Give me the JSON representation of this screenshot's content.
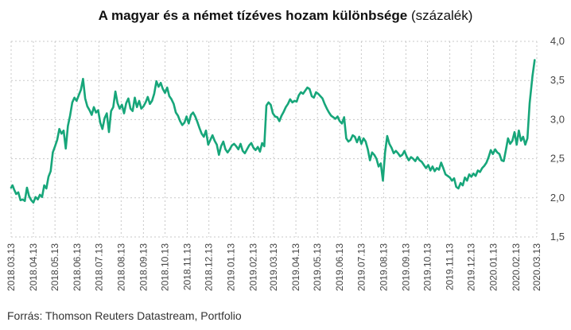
{
  "title_bold": "A magyar és a német tízéves hozam különbsége",
  "title_unit": "(százalék)",
  "source": "Forrás: Thomson Reuters Datastream, Portfolio",
  "chart_data": {
    "type": "line",
    "title": "A magyar és a német tízéves hozam különbsége (százalék)",
    "ylim": [
      1.5,
      4.0
    ],
    "yticks": [
      "4,0",
      "3,5",
      "3,0",
      "2,5",
      "2,0",
      "1,5"
    ],
    "ytick_values": [
      4.0,
      3.5,
      3.0,
      2.5,
      2.0,
      1.5
    ],
    "xlim": [
      "2018-03-13",
      "2020-03-13"
    ],
    "grid": true,
    "color": "#17a67a",
    "xticks": [
      {
        "label": "2018.03.13",
        "date": "2018-03-13"
      },
      {
        "label": "2018.04.13",
        "date": "2018-04-13"
      },
      {
        "label": "2018.05.13",
        "date": "2018-05-13"
      },
      {
        "label": "2018.06.13",
        "date": "2018-06-13"
      },
      {
        "label": "2018.07.13",
        "date": "2018-07-13"
      },
      {
        "label": "2018.08.13",
        "date": "2018-08-13"
      },
      {
        "label": "2018.09.13",
        "date": "2018-09-13"
      },
      {
        "label": "2018.10.13",
        "date": "2018-10-13"
      },
      {
        "label": "2018.11.13",
        "date": "2018-11-13"
      },
      {
        "label": "2018.12.13",
        "date": "2018-12-13"
      },
      {
        "label": "2019.01.13",
        "date": "2019-01-13"
      },
      {
        "label": "2019.02.13",
        "date": "2019-02-13"
      },
      {
        "label": "2019.03.13",
        "date": "2019-03-13"
      },
      {
        "label": "2019.04.13",
        "date": "2019-04-13"
      },
      {
        "label": "2019.05.13",
        "date": "2019-05-13"
      },
      {
        "label": "2019.06.13",
        "date": "2019-06-13"
      },
      {
        "label": "2019.07.13",
        "date": "2019-07-13"
      },
      {
        "label": "2019.08.13",
        "date": "2019-08-13"
      },
      {
        "label": "2019.09.13",
        "date": "2019-09-13"
      },
      {
        "label": "2019.10.13",
        "date": "2019-10-13"
      },
      {
        "label": "2019.11.13",
        "date": "2019-11-13"
      },
      {
        "label": "2019.12.13",
        "date": "2019-12-13"
      },
      {
        "label": "2020.01.13",
        "date": "2020-01-13"
      },
      {
        "label": "2020.02.13",
        "date": "2020-02-13"
      },
      {
        "label": "2020.03.13",
        "date": "2020-03-13"
      }
    ],
    "series": [
      {
        "points": [
          [
            "2018-03-13",
            2.13
          ],
          [
            "2018-03-15",
            2.16
          ],
          [
            "2018-03-17",
            2.11
          ],
          [
            "2018-03-20",
            2.05
          ],
          [
            "2018-03-23",
            2.07
          ],
          [
            "2018-03-26",
            1.97
          ],
          [
            "2018-03-29",
            1.98
          ],
          [
            "2018-04-01",
            1.96
          ],
          [
            "2018-04-04",
            2.13
          ],
          [
            "2018-04-07",
            2.02
          ],
          [
            "2018-04-10",
            1.97
          ],
          [
            "2018-04-13",
            1.94
          ],
          [
            "2018-04-16",
            2.01
          ],
          [
            "2018-04-19",
            1.98
          ],
          [
            "2018-04-22",
            2.04
          ],
          [
            "2018-04-25",
            2.01
          ],
          [
            "2018-04-28",
            2.16
          ],
          [
            "2018-05-01",
            2.12
          ],
          [
            "2018-05-04",
            2.27
          ],
          [
            "2018-05-07",
            2.34
          ],
          [
            "2018-05-10",
            2.58
          ],
          [
            "2018-05-13",
            2.66
          ],
          [
            "2018-05-16",
            2.74
          ],
          [
            "2018-05-19",
            2.88
          ],
          [
            "2018-05-22",
            2.82
          ],
          [
            "2018-05-25",
            2.86
          ],
          [
            "2018-05-28",
            2.63
          ],
          [
            "2018-05-31",
            2.92
          ],
          [
            "2018-06-03",
            3.05
          ],
          [
            "2018-06-06",
            3.22
          ],
          [
            "2018-06-09",
            3.28
          ],
          [
            "2018-06-12",
            3.24
          ],
          [
            "2018-06-15",
            3.31
          ],
          [
            "2018-06-18",
            3.38
          ],
          [
            "2018-06-21",
            3.52
          ],
          [
            "2018-06-24",
            3.27
          ],
          [
            "2018-06-27",
            3.17
          ],
          [
            "2018-06-30",
            3.12
          ],
          [
            "2018-07-03",
            3.06
          ],
          [
            "2018-07-06",
            3.16
          ],
          [
            "2018-07-09",
            3.09
          ],
          [
            "2018-07-12",
            3.12
          ],
          [
            "2018-07-15",
            2.96
          ],
          [
            "2018-07-18",
            2.88
          ],
          [
            "2018-07-21",
            3.02
          ],
          [
            "2018-07-24",
            3.08
          ],
          [
            "2018-07-27",
            2.84
          ],
          [
            "2018-07-30",
            3.11
          ],
          [
            "2018-08-02",
            3.16
          ],
          [
            "2018-08-05",
            3.36
          ],
          [
            "2018-08-08",
            3.21
          ],
          [
            "2018-08-11",
            3.14
          ],
          [
            "2018-08-14",
            3.19
          ],
          [
            "2018-08-17",
            3.08
          ],
          [
            "2018-08-20",
            3.21
          ],
          [
            "2018-08-23",
            3.27
          ],
          [
            "2018-08-26",
            3.14
          ],
          [
            "2018-08-29",
            3.11
          ],
          [
            "2018-09-01",
            3.28
          ],
          [
            "2018-09-04",
            3.16
          ],
          [
            "2018-09-07",
            3.24
          ],
          [
            "2018-09-10",
            3.14
          ],
          [
            "2018-09-13",
            3.17
          ],
          [
            "2018-09-16",
            3.22
          ],
          [
            "2018-09-19",
            3.29
          ],
          [
            "2018-09-22",
            3.2
          ],
          [
            "2018-09-25",
            3.24
          ],
          [
            "2018-09-28",
            3.33
          ],
          [
            "2018-10-01",
            3.49
          ],
          [
            "2018-10-04",
            3.42
          ],
          [
            "2018-10-07",
            3.47
          ],
          [
            "2018-10-10",
            3.39
          ],
          [
            "2018-10-13",
            3.34
          ],
          [
            "2018-10-16",
            3.41
          ],
          [
            "2018-10-19",
            3.3
          ],
          [
            "2018-10-22",
            3.26
          ],
          [
            "2018-10-25",
            3.2
          ],
          [
            "2018-10-28",
            3.09
          ],
          [
            "2018-10-31",
            3.05
          ],
          [
            "2018-11-03",
            2.98
          ],
          [
            "2018-11-06",
            2.93
          ],
          [
            "2018-11-09",
            2.96
          ],
          [
            "2018-11-12",
            3.04
          ],
          [
            "2018-11-15",
            2.95
          ],
          [
            "2018-11-18",
            3.06
          ],
          [
            "2018-11-21",
            3.09
          ],
          [
            "2018-11-24",
            3.04
          ],
          [
            "2018-11-27",
            2.97
          ],
          [
            "2018-11-30",
            2.89
          ],
          [
            "2018-12-03",
            2.82
          ],
          [
            "2018-12-06",
            2.78
          ],
          [
            "2018-12-09",
            2.86
          ],
          [
            "2018-12-12",
            2.68
          ],
          [
            "2018-12-15",
            2.74
          ],
          [
            "2018-12-18",
            2.8
          ],
          [
            "2018-12-21",
            2.73
          ],
          [
            "2018-12-24",
            2.68
          ],
          [
            "2018-12-27",
            2.55
          ],
          [
            "2018-12-30",
            2.66
          ],
          [
            "2019-01-02",
            2.72
          ],
          [
            "2019-01-05",
            2.62
          ],
          [
            "2019-01-08",
            2.58
          ],
          [
            "2019-01-11",
            2.62
          ],
          [
            "2019-01-14",
            2.67
          ],
          [
            "2019-01-17",
            2.69
          ],
          [
            "2019-01-20",
            2.66
          ],
          [
            "2019-01-23",
            2.62
          ],
          [
            "2019-01-26",
            2.69
          ],
          [
            "2019-01-29",
            2.6
          ],
          [
            "2019-02-01",
            2.57
          ],
          [
            "2019-02-04",
            2.62
          ],
          [
            "2019-02-07",
            2.67
          ],
          [
            "2019-02-10",
            2.7
          ],
          [
            "2019-02-13",
            2.64
          ],
          [
            "2019-02-16",
            2.61
          ],
          [
            "2019-02-19",
            2.65
          ],
          [
            "2019-02-22",
            2.59
          ],
          [
            "2019-02-25",
            2.7
          ],
          [
            "2019-02-28",
            2.66
          ],
          [
            "2019-03-03",
            3.18
          ],
          [
            "2019-03-06",
            3.22
          ],
          [
            "2019-03-09",
            3.19
          ],
          [
            "2019-03-12",
            3.08
          ],
          [
            "2019-03-15",
            3.04
          ],
          [
            "2019-03-18",
            3.03
          ],
          [
            "2019-03-21",
            2.98
          ],
          [
            "2019-03-24",
            3.05
          ],
          [
            "2019-03-27",
            3.1
          ],
          [
            "2019-03-30",
            3.16
          ],
          [
            "2019-04-02",
            3.2
          ],
          [
            "2019-04-05",
            3.26
          ],
          [
            "2019-04-08",
            3.22
          ],
          [
            "2019-04-11",
            3.24
          ],
          [
            "2019-04-14",
            3.23
          ],
          [
            "2019-04-17",
            3.31
          ],
          [
            "2019-04-20",
            3.35
          ],
          [
            "2019-04-23",
            3.33
          ],
          [
            "2019-04-26",
            3.37
          ],
          [
            "2019-04-29",
            3.41
          ],
          [
            "2019-05-02",
            3.39
          ],
          [
            "2019-05-05",
            3.3
          ],
          [
            "2019-05-08",
            3.28
          ],
          [
            "2019-05-11",
            3.35
          ],
          [
            "2019-05-14",
            3.33
          ],
          [
            "2019-05-17",
            3.3
          ],
          [
            "2019-05-20",
            3.27
          ],
          [
            "2019-05-23",
            3.2
          ],
          [
            "2019-05-26",
            3.14
          ],
          [
            "2019-05-29",
            3.09
          ],
          [
            "2019-06-01",
            3.05
          ],
          [
            "2019-06-04",
            3.03
          ],
          [
            "2019-06-07",
            3.01
          ],
          [
            "2019-06-10",
            3.04
          ],
          [
            "2019-06-13",
            2.98
          ],
          [
            "2019-06-16",
            2.95
          ],
          [
            "2019-06-19",
            3.03
          ],
          [
            "2019-06-22",
            2.76
          ],
          [
            "2019-06-25",
            2.72
          ],
          [
            "2019-06-28",
            2.74
          ],
          [
            "2019-07-01",
            2.8
          ],
          [
            "2019-07-04",
            2.78
          ],
          [
            "2019-07-07",
            2.71
          ],
          [
            "2019-07-10",
            2.78
          ],
          [
            "2019-07-13",
            2.69
          ],
          [
            "2019-07-16",
            2.76
          ],
          [
            "2019-07-19",
            2.72
          ],
          [
            "2019-07-22",
            2.62
          ],
          [
            "2019-07-25",
            2.48
          ],
          [
            "2019-07-28",
            2.58
          ],
          [
            "2019-07-31",
            2.55
          ],
          [
            "2019-08-03",
            2.5
          ],
          [
            "2019-08-06",
            2.4
          ],
          [
            "2019-08-09",
            2.44
          ],
          [
            "2019-08-12",
            2.22
          ],
          [
            "2019-08-15",
            2.58
          ],
          [
            "2019-08-18",
            2.79
          ],
          [
            "2019-08-21",
            2.69
          ],
          [
            "2019-08-24",
            2.64
          ],
          [
            "2019-08-27",
            2.57
          ],
          [
            "2019-08-30",
            2.6
          ],
          [
            "2019-09-02",
            2.57
          ],
          [
            "2019-09-05",
            2.53
          ],
          [
            "2019-09-08",
            2.55
          ],
          [
            "2019-09-11",
            2.6
          ],
          [
            "2019-09-14",
            2.53
          ],
          [
            "2019-09-17",
            2.48
          ],
          [
            "2019-09-20",
            2.52
          ],
          [
            "2019-09-23",
            2.5
          ],
          [
            "2019-09-26",
            2.47
          ],
          [
            "2019-09-29",
            2.52
          ],
          [
            "2019-10-02",
            2.48
          ],
          [
            "2019-10-05",
            2.46
          ],
          [
            "2019-10-08",
            2.42
          ],
          [
            "2019-10-11",
            2.38
          ],
          [
            "2019-10-14",
            2.42
          ],
          [
            "2019-10-17",
            2.35
          ],
          [
            "2019-10-20",
            2.4
          ],
          [
            "2019-10-23",
            2.34
          ],
          [
            "2019-10-26",
            2.38
          ],
          [
            "2019-10-29",
            2.36
          ],
          [
            "2019-11-01",
            2.45
          ],
          [
            "2019-11-04",
            2.38
          ],
          [
            "2019-11-07",
            2.3
          ],
          [
            "2019-11-10",
            2.28
          ],
          [
            "2019-11-13",
            2.26
          ],
          [
            "2019-11-16",
            2.22
          ],
          [
            "2019-11-19",
            2.25
          ],
          [
            "2019-11-22",
            2.14
          ],
          [
            "2019-11-25",
            2.12
          ],
          [
            "2019-11-28",
            2.19
          ],
          [
            "2019-12-01",
            2.16
          ],
          [
            "2019-12-04",
            2.26
          ],
          [
            "2019-12-07",
            2.22
          ],
          [
            "2019-12-10",
            2.3
          ],
          [
            "2019-12-13",
            2.27
          ],
          [
            "2019-12-16",
            2.31
          ],
          [
            "2019-12-19",
            2.28
          ],
          [
            "2019-12-22",
            2.35
          ],
          [
            "2019-12-25",
            2.33
          ],
          [
            "2019-12-28",
            2.38
          ],
          [
            "2019-12-31",
            2.41
          ],
          [
            "2020-01-03",
            2.45
          ],
          [
            "2020-01-06",
            2.52
          ],
          [
            "2020-01-09",
            2.61
          ],
          [
            "2020-01-12",
            2.56
          ],
          [
            "2020-01-15",
            2.62
          ],
          [
            "2020-01-18",
            2.58
          ],
          [
            "2020-01-21",
            2.56
          ],
          [
            "2020-01-24",
            2.48
          ],
          [
            "2020-01-27",
            2.47
          ],
          [
            "2020-01-30",
            2.61
          ],
          [
            "2020-02-02",
            2.76
          ],
          [
            "2020-02-05",
            2.69
          ],
          [
            "2020-02-08",
            2.73
          ],
          [
            "2020-02-11",
            2.84
          ],
          [
            "2020-02-14",
            2.68
          ],
          [
            "2020-02-17",
            2.86
          ],
          [
            "2020-02-20",
            2.73
          ],
          [
            "2020-02-23",
            2.78
          ],
          [
            "2020-02-26",
            2.68
          ],
          [
            "2020-02-29",
            2.76
          ],
          [
            "2020-03-03",
            3.21
          ],
          [
            "2020-03-07",
            3.56
          ],
          [
            "2020-03-10",
            3.76
          ]
        ]
      }
    ]
  }
}
